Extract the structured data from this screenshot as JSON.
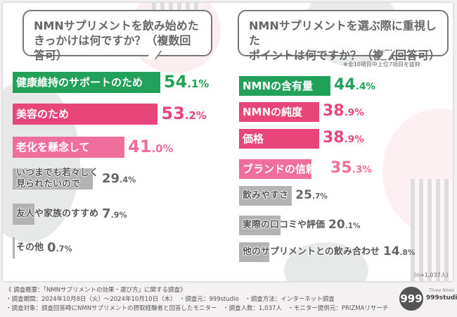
{
  "colors": {
    "green": "#22a15a",
    "pink": "#e8457a",
    "light_pink": "#f06e9b",
    "grey": "#b3b3b3",
    "grey_text": "#666666"
  },
  "chart_data": [
    {
      "type": "bar",
      "orientation": "horizontal",
      "unit": "%",
      "title": "NMNサプリメントを飲み始めたきっかけは何ですか？（複数回答可）",
      "categories": [
        "健康維持のサポートのため",
        "美容のため",
        "老化を懸念して",
        "いつまでも若々しく見られたいので",
        "友人や家族のすすめ",
        "その他"
      ],
      "values": [
        54.1,
        53.2,
        41.0,
        29.4,
        7.9,
        0.7
      ],
      "bar_colors": [
        "green",
        "pink",
        "light_pink",
        "grey",
        "grey",
        "grey"
      ]
    },
    {
      "type": "bar",
      "orientation": "horizontal",
      "unit": "%",
      "title": "NMNサプリメントを選ぶ際に重視したポイントは何ですか？（複数回答可）",
      "note": "※全10項目中上位7項目を抜粋",
      "sample": "（n=1,037人）",
      "categories": [
        "NMNの含有量",
        "NMNの純度",
        "価格",
        "ブランドの信頼性",
        "飲みやすさ",
        "実際の口コミや評価",
        "他のサプリメントとの飲み合わせ"
      ],
      "values": [
        44.4,
        38.9,
        38.9,
        35.3,
        25.7,
        20.1,
        14.8
      ],
      "bar_colors": [
        "green",
        "pink",
        "pink",
        "light_pink",
        "grey",
        "grey",
        "grey"
      ]
    }
  ],
  "questions": {
    "left": {
      "line1": "NMNサプリメントを飲み始めた",
      "line2": "きっかけは何ですか？（複数回答可）"
    },
    "right": {
      "line1": "NMNサプリメントを選ぶ際に重視した",
      "line2": "ポイントは何ですか？（複数回答可）"
    }
  },
  "footer": {
    "line1": "《 調査概要：「NMNサプリメントの効果・選び方」に関する調査》",
    "line2": "・調査期間：2024年10月8日（火）～2024年10月10日（木）　・調査元：999studio　・調査方法：インターネット調査",
    "line3": "・調査対象：調査回答時にNMNサプリメントの摂取経験者と回答したモニター　・調査人数：1,037人　・モニター提供元：PRIZMAリサーチ"
  },
  "logo": {
    "mark": "999",
    "sub": "Three Nines",
    "name": "999studio"
  }
}
